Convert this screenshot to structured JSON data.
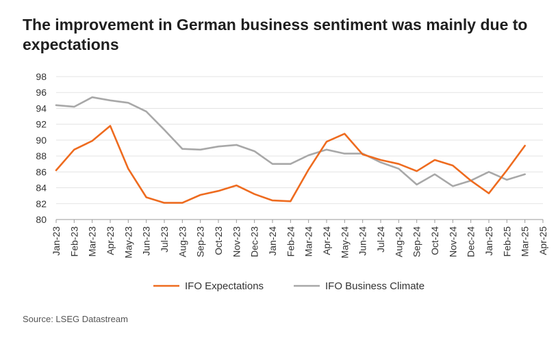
{
  "title": "The improvement in German business sentiment was mainly due to expectations",
  "source": "Source: LSEG Datastream",
  "chart_data": {
    "type": "line",
    "x": [
      "Jan-23",
      "Feb-23",
      "Mar-23",
      "Apr-23",
      "May-23",
      "Jun-23",
      "Jul-23",
      "Aug-23",
      "Sep-23",
      "Oct-23",
      "Nov-23",
      "Dec-23",
      "Jan-24",
      "Feb-24",
      "Mar-24",
      "Apr-24",
      "May-24",
      "Jun-24",
      "Jul-24",
      "Aug-24",
      "Sep-24",
      "Oct-24",
      "Nov-24",
      "Dec-24",
      "Jan-25",
      "Feb-25",
      "Mar-25",
      "Apr-25"
    ],
    "ylim": [
      80,
      98
    ],
    "yticks": [
      80,
      82,
      84,
      86,
      88,
      90,
      92,
      94,
      96,
      98
    ],
    "grid": true,
    "legend": "bottom",
    "series": [
      {
        "name": "IFO Expectations",
        "color": "#ee6b1f",
        "values": [
          86.2,
          88.8,
          89.9,
          91.8,
          86.4,
          82.8,
          82.1,
          82.1,
          83.1,
          83.6,
          84.3,
          83.2,
          82.4,
          82.3,
          86.3,
          89.8,
          90.8,
          88.2,
          87.5,
          87.0,
          86.1,
          87.5,
          86.8,
          84.9,
          83.3,
          86.2,
          89.3,
          null
        ]
      },
      {
        "name": "IFO Business Climate",
        "color": "#a8a8a8",
        "values": [
          94.4,
          94.2,
          95.4,
          95.0,
          94.7,
          93.6,
          91.3,
          88.9,
          88.8,
          89.2,
          89.4,
          88.6,
          87.0,
          87.0,
          88.1,
          88.8,
          88.3,
          88.3,
          87.2,
          86.4,
          84.4,
          85.7,
          84.2,
          84.9,
          86.0,
          85.0,
          85.7,
          null
        ]
      }
    ]
  }
}
